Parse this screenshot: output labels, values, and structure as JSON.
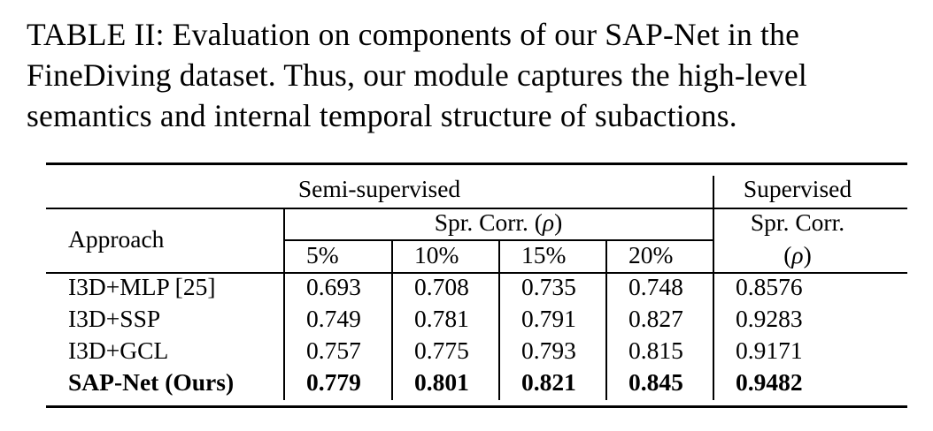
{
  "caption": {
    "lines": [
      "TABLE II: Evaluation on components of our SAP-Net in the",
      "FineDiving dataset. Thus, our module captures the high-level",
      "semantics and internal temporal structure of subactions."
    ]
  },
  "table": {
    "group_semi": "Semi-supervised",
    "group_sup": "Supervised",
    "approach_header": "Approach",
    "spr_corr_prefix": "Spr. Corr. (",
    "rho": "ρ",
    "spr_corr_suffix": ")",
    "sup_header_line1": "Spr. Corr.",
    "sup_header_line2_open": "(",
    "sup_header_line2_close": ")",
    "percentages": [
      "5%",
      "10%",
      "15%",
      "20%"
    ],
    "rows": [
      {
        "approach": "I3D+MLP [25]",
        "v5": "0.693",
        "v10": "0.708",
        "v15": "0.735",
        "v20": "0.748",
        "sup": "0.8576",
        "bold": false
      },
      {
        "approach": "I3D+SSP",
        "v5": "0.749",
        "v10": "0.781",
        "v15": "0.791",
        "v20": "0.827",
        "sup": "0.9283",
        "bold": false
      },
      {
        "approach": "I3D+GCL",
        "v5": "0.757",
        "v10": "0.775",
        "v15": "0.793",
        "v20": "0.815",
        "sup": "0.9171",
        "bold": false
      },
      {
        "approach": "SAP-Net (Ours)",
        "v5": "0.779",
        "v10": "0.801",
        "v15": "0.821",
        "v20": "0.845",
        "sup": "0.9482",
        "bold": true
      }
    ]
  }
}
